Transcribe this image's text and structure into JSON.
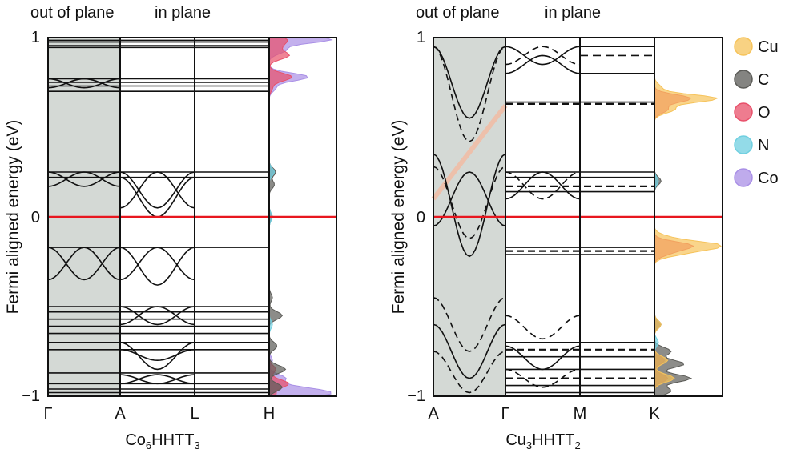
{
  "legend": [
    {
      "name": "Cu",
      "color": "#f6c35a"
    },
    {
      "name": "C",
      "color": "#5b5b57"
    },
    {
      "name": "O",
      "color": "#e8506a"
    },
    {
      "name": "N",
      "color": "#6fcfe0"
    },
    {
      "name": "Co",
      "color": "#a98fe6"
    }
  ],
  "chart_data": [
    {
      "type": "line",
      "title": "",
      "ylabel": "Fermi aligned energy (eV)",
      "ylim": [
        -1,
        1
      ],
      "yticks": [
        "1",
        "0",
        "−1"
      ],
      "region_labels": [
        "out of plane",
        "in plane"
      ],
      "kpoints": [
        "Γ",
        "A",
        "L",
        "H"
      ],
      "material": {
        "prefix": "Co",
        "sub1": "6",
        "mid": "HHTT",
        "sub2": "3"
      },
      "fermi_level": 0,
      "fermi_color": "#e8171f",
      "shaded_color": "#d4d9d5",
      "flat_bands": [
        0.985,
        0.975,
        0.955,
        0.945,
        0.77,
        0.75,
        0.73,
        0.7,
        0.25,
        0.22,
        -0.17,
        -0.5,
        -0.53,
        -0.57,
        -0.61,
        -0.65,
        -0.7,
        -0.74,
        -0.87,
        -0.93,
        -0.96,
        -0.98
      ],
      "dos": {
        "Co": [
          [
            0.99,
            0.95
          ],
          [
            0.93,
            0.25
          ],
          [
            0.78,
            0.6
          ],
          [
            0.72,
            0.1
          ],
          [
            -0.8,
            0.05
          ],
          [
            -0.9,
            0.25
          ],
          [
            -0.96,
            0.45
          ],
          [
            -0.99,
            0.75
          ]
        ],
        "O": [
          [
            0.99,
            0.25
          ],
          [
            0.95,
            0.15
          ],
          [
            0.9,
            0.3
          ],
          [
            0.78,
            0.35
          ],
          [
            0.72,
            0.05
          ],
          [
            -0.85,
            0.1
          ],
          [
            -0.93,
            0.3
          ],
          [
            -0.99,
            0.1
          ]
        ],
        "C": [
          [
            0.25,
            0.1
          ],
          [
            0.18,
            0.08
          ],
          [
            0.0,
            0.05
          ],
          [
            -0.45,
            0.05
          ],
          [
            -0.55,
            0.2
          ],
          [
            -0.72,
            0.12
          ],
          [
            -0.85,
            0.25
          ],
          [
            -0.95,
            0.2
          ]
        ],
        "N": [
          [
            0.25,
            0.08
          ],
          [
            0.0,
            0.05
          ],
          [
            -0.6,
            0.05
          ]
        ]
      }
    },
    {
      "type": "line",
      "title": "",
      "ylabel": "Fermi aligned energy (eV)",
      "ylim": [
        -1,
        1
      ],
      "yticks": [
        "1",
        "0",
        "−1"
      ],
      "region_labels": [
        "out of plane",
        "in plane"
      ],
      "kpoints": [
        "A",
        "Γ",
        "M",
        "K"
      ],
      "material": {
        "prefix": "Cu",
        "sub1": "3",
        "mid": "HHTT",
        "sub2": "2"
      },
      "fermi_level": 0,
      "fermi_color": "#e8171f",
      "shaded_color": "#d4d9d5",
      "flat_bands": [
        0.64,
        0.63,
        0.25,
        0.22,
        0.17,
        0.14,
        -0.17,
        -0.19,
        -0.21,
        -0.7,
        -0.74,
        -0.78,
        -0.85,
        -0.9,
        -0.94,
        -0.98
      ],
      "dos": {
        "Cu": [
          [
            0.72,
            0.1
          ],
          [
            0.66,
            0.95
          ],
          [
            0.6,
            0.3
          ],
          [
            -0.12,
            0.2
          ],
          [
            -0.16,
            0.95
          ],
          [
            -0.2,
            0.4
          ],
          [
            -0.6,
            0.1
          ],
          [
            -0.8,
            0.2
          ],
          [
            -0.9,
            0.3
          ]
        ],
        "O": [
          [
            0.66,
            0.55
          ],
          [
            0.6,
            0.2
          ],
          [
            -0.16,
            0.55
          ],
          [
            -0.2,
            0.2
          ],
          [
            -0.8,
            0.15
          ],
          [
            -0.9,
            0.2
          ]
        ],
        "C": [
          [
            0.2,
            0.1
          ],
          [
            -0.6,
            0.1
          ],
          [
            -0.75,
            0.25
          ],
          [
            -0.82,
            0.45
          ],
          [
            -0.9,
            0.55
          ],
          [
            -0.97,
            0.25
          ]
        ],
        "N": [
          [
            0.2,
            0.06
          ],
          [
            -0.7,
            0.06
          ]
        ],
        "Co": [
          [
            0.0,
            0.0
          ]
        ]
      }
    }
  ]
}
